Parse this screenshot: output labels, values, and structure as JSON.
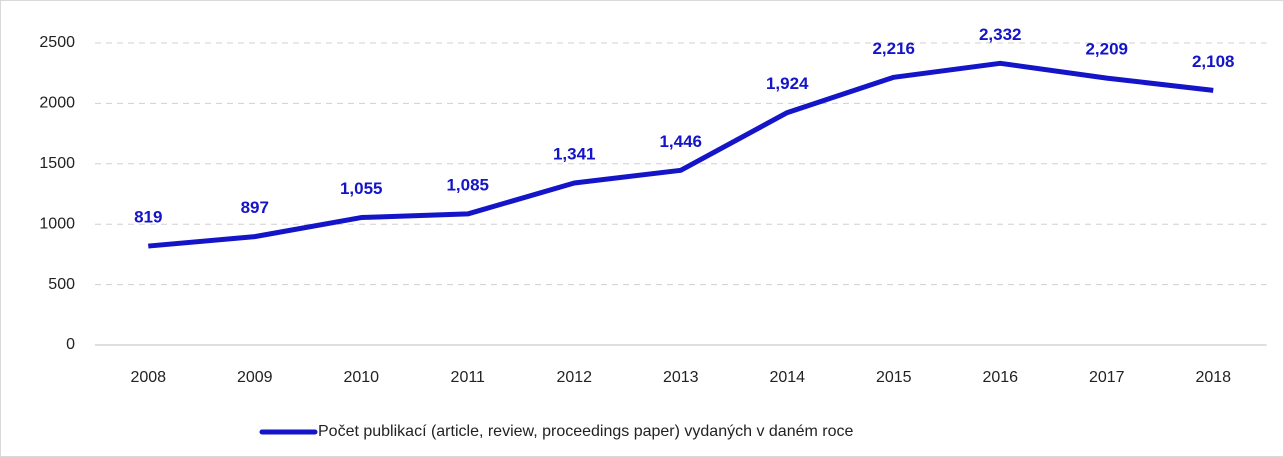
{
  "chart_data": {
    "type": "line",
    "categories": [
      "2008",
      "2009",
      "2010",
      "2011",
      "2012",
      "2013",
      "2014",
      "2015",
      "2016",
      "2017",
      "2018"
    ],
    "series": [
      {
        "name": "Počet publikací (article, review, proceedings paper) vydaných v daném roce",
        "color": "#1414c8",
        "values": [
          819,
          897,
          1055,
          1085,
          1341,
          1446,
          1924,
          2216,
          2332,
          2209,
          2108
        ],
        "value_labels": [
          "819",
          "897",
          "1,055",
          "1,085",
          "1,341",
          "1,446",
          "1,924",
          "2,216",
          "2,332",
          "2,209",
          "2,108"
        ]
      }
    ],
    "ylim": [
      0,
      2500
    ],
    "yticks": [
      0,
      500,
      1000,
      1500,
      2000,
      2500
    ],
    "grid": true,
    "legend": "bottom"
  }
}
